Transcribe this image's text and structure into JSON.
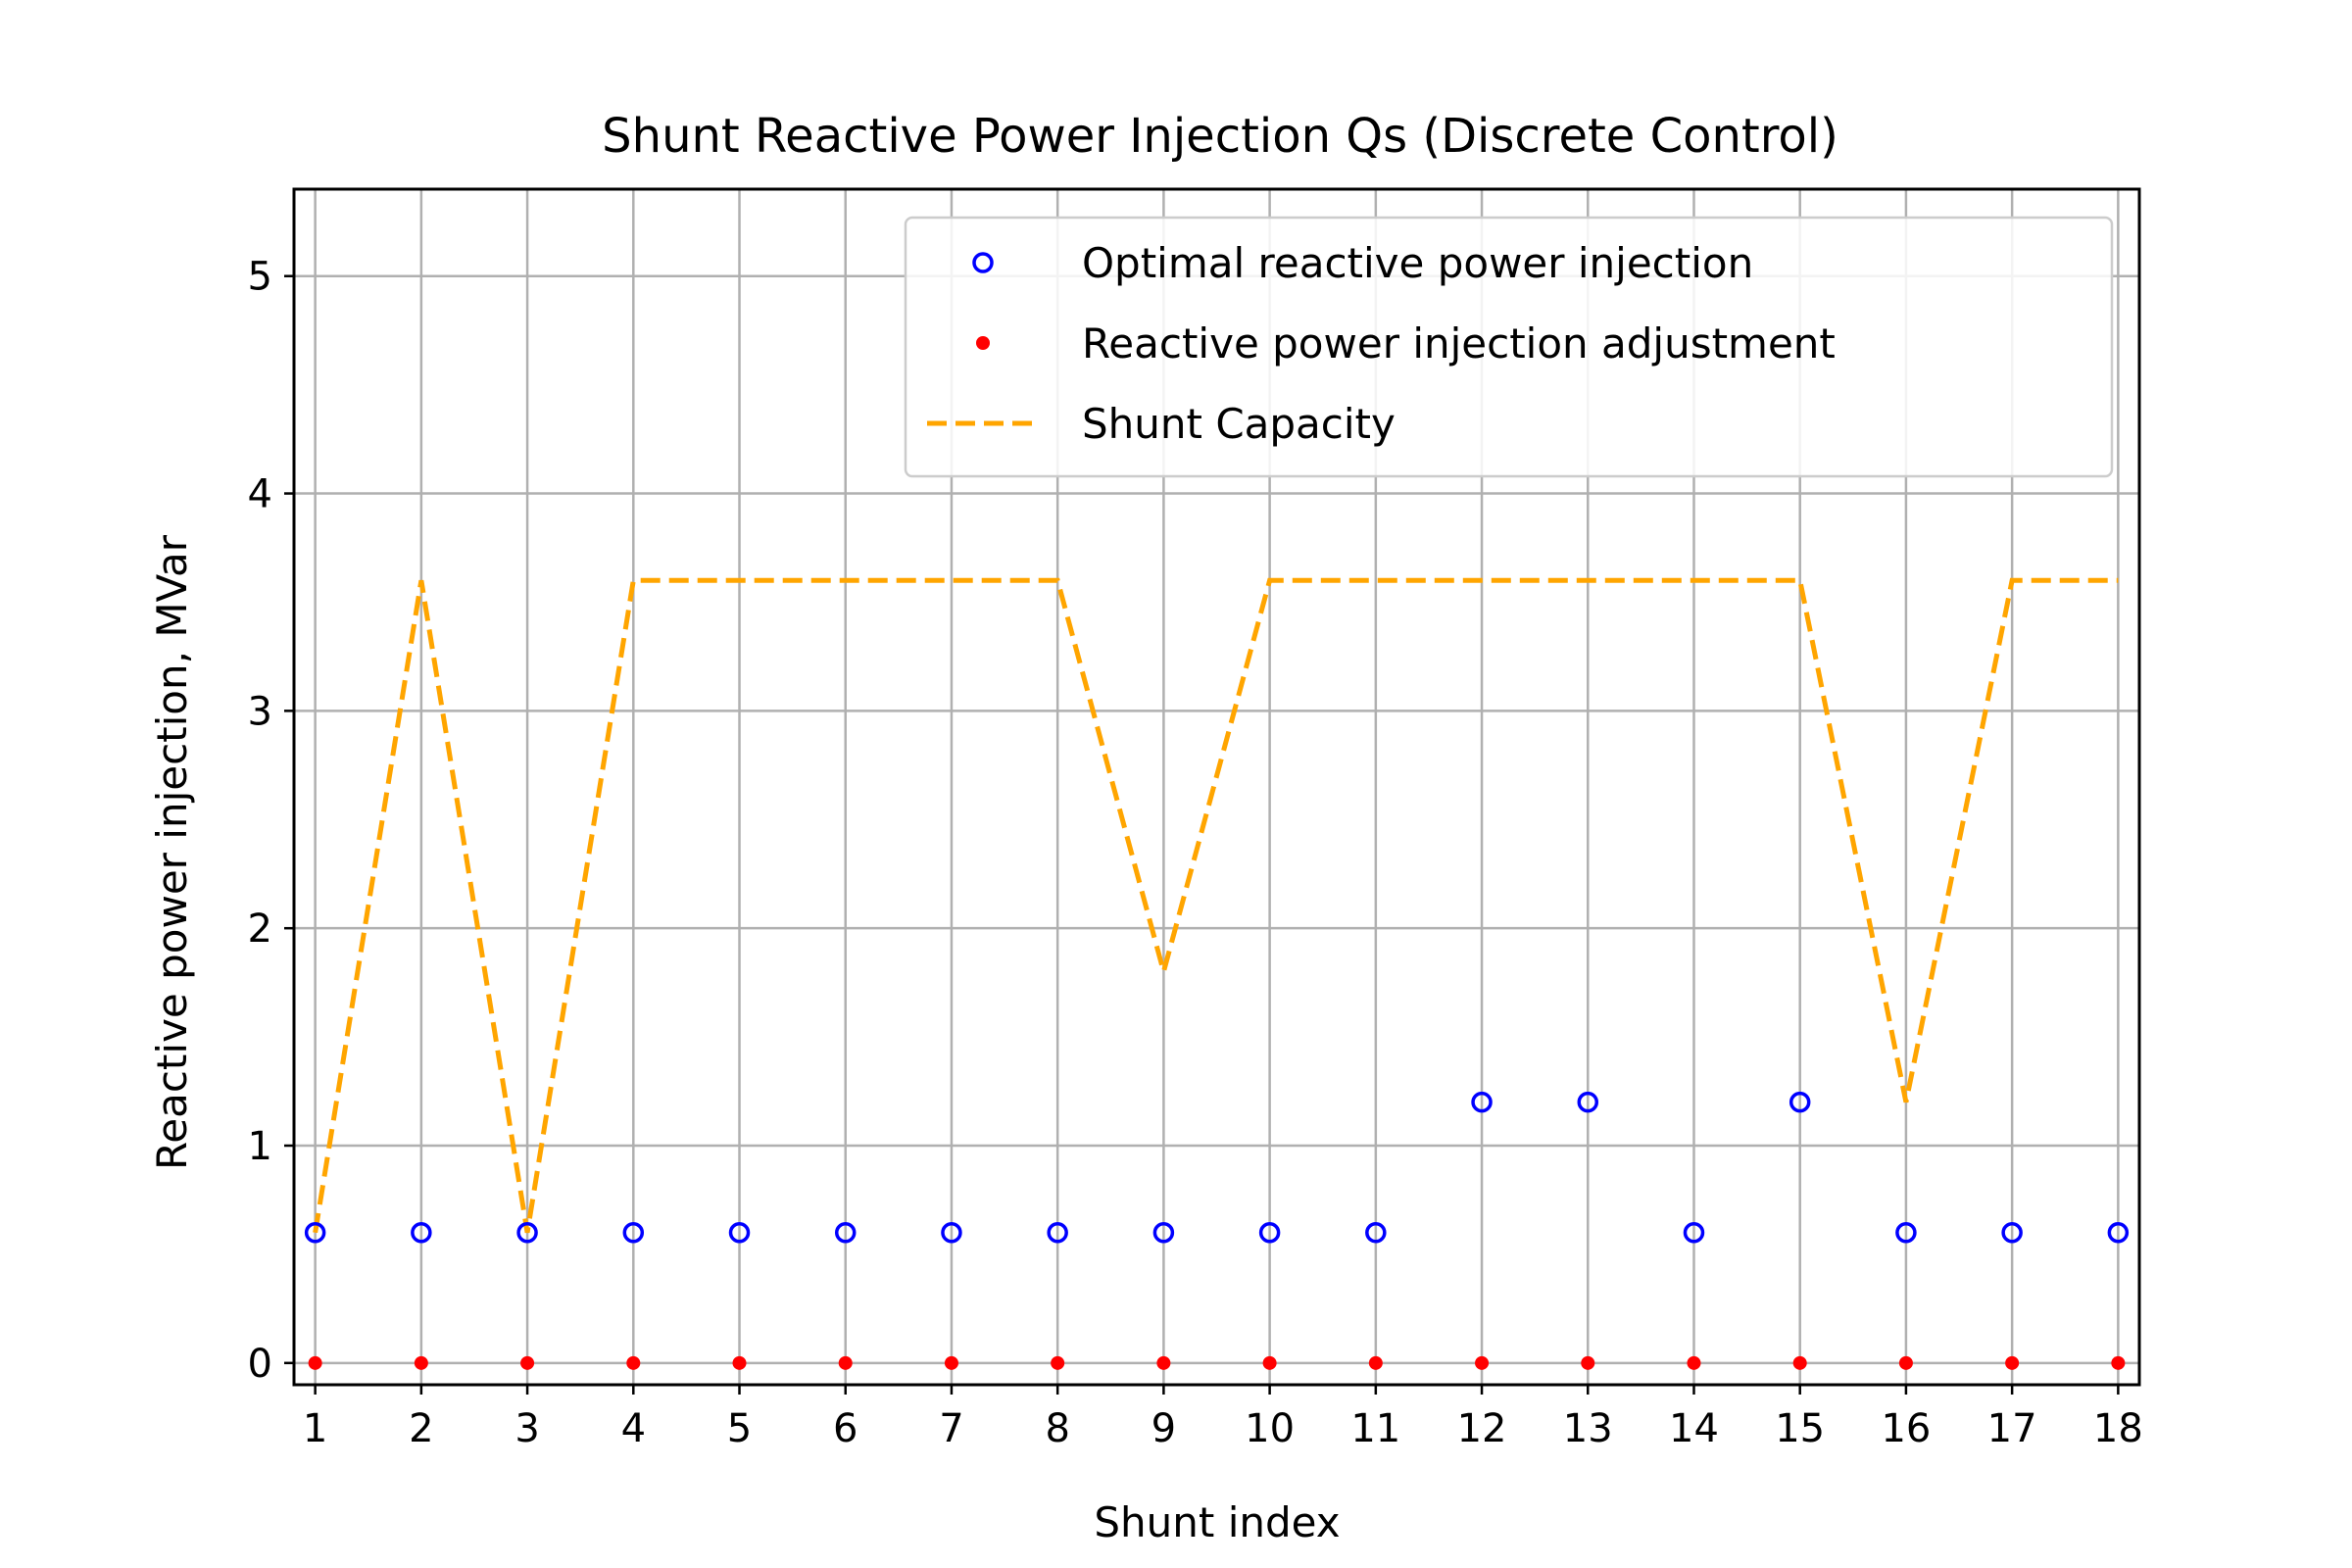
{
  "chart_data": {
    "type": "scatter",
    "title": "Shunt Reactive Power Injection Qs (Discrete Control)",
    "xlabel": "Shunt index",
    "ylabel": "Reactive power injection, MVar",
    "xlim": [
      0.8,
      18.2
    ],
    "ylim": [
      -0.1,
      5.4
    ],
    "xticks": [
      1,
      2,
      3,
      4,
      5,
      6,
      7,
      8,
      9,
      10,
      11,
      12,
      13,
      14,
      15,
      16,
      17,
      18
    ],
    "yticks": [
      0,
      1,
      2,
      3,
      4,
      5
    ],
    "grid": true,
    "legend_position": "upper right",
    "x": [
      1,
      2,
      3,
      4,
      5,
      6,
      7,
      8,
      9,
      10,
      11,
      12,
      13,
      14,
      15,
      16,
      17,
      18
    ],
    "series": [
      {
        "name": "Optimal reactive power injection",
        "marker": "open-circle",
        "color": "#0000ff",
        "values": [
          0.6,
          0.6,
          0.6,
          0.6,
          0.6,
          0.6,
          0.6,
          0.6,
          0.6,
          0.6,
          0.6,
          1.2,
          1.2,
          0.6,
          1.2,
          0.6,
          0.6,
          0.6
        ]
      },
      {
        "name": "Reactive power injection adjustment",
        "marker": "filled-dot",
        "color": "#ff0000",
        "values": [
          0,
          0,
          0,
          0,
          0,
          0,
          0,
          0,
          0,
          0,
          0,
          0,
          0,
          0,
          0,
          0,
          0,
          0
        ]
      },
      {
        "name": "Shunt Capacity",
        "marker": "dashed-line",
        "color": "#ffa500",
        "values": [
          0.6,
          3.6,
          0.6,
          3.6,
          3.6,
          3.6,
          3.6,
          3.6,
          1.8,
          3.6,
          3.6,
          3.6,
          3.6,
          3.6,
          3.6,
          1.2,
          3.6,
          3.6
        ]
      }
    ]
  }
}
